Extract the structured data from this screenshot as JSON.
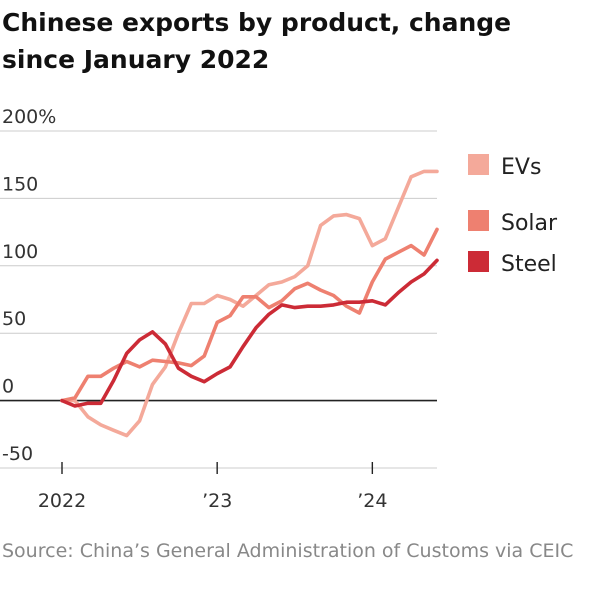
{
  "header": {
    "title": "Chinese exports by product, change since January 2022"
  },
  "footer": {
    "source": "Source: China’s General Administration of Customs via CEIC"
  },
  "chart_data": {
    "type": "line",
    "title": "Chinese exports by product, change since January 2022",
    "xlabel": "",
    "ylabel": "",
    "ylim": [
      -50,
      200
    ],
    "xlim": [
      0,
      29
    ],
    "y_ticks": [
      {
        "value": 200,
        "label": "200%"
      },
      {
        "value": 150,
        "label": "150"
      },
      {
        "value": 100,
        "label": "100"
      },
      {
        "value": 50,
        "label": "50"
      },
      {
        "value": 0,
        "label": "0"
      },
      {
        "value": -50,
        "label": "-50"
      }
    ],
    "x_ticks": [
      {
        "value": 0,
        "label": "2022"
      },
      {
        "value": 12,
        "label": "’23"
      },
      {
        "value": 24,
        "label": "’24"
      }
    ],
    "legend_position": "top-right",
    "series": [
      {
        "name": "EVs",
        "color": "#f4a99a",
        "x": [
          0,
          1,
          2,
          3,
          4,
          5,
          6,
          7,
          8,
          9,
          10,
          11,
          12,
          13,
          14,
          15,
          16,
          17,
          18,
          19,
          20,
          21,
          22,
          23,
          24,
          25,
          26,
          27,
          28,
          29
        ],
        "values": [
          0,
          0,
          -12,
          -18,
          -22,
          -26,
          -15,
          12,
          25,
          50,
          72,
          72,
          78,
          75,
          70,
          78,
          86,
          88,
          92,
          100,
          130,
          137,
          138,
          135,
          115,
          120,
          143,
          166,
          170,
          170
        ]
      },
      {
        "name": "Solar",
        "color": "#ee8070",
        "x": [
          0,
          1,
          2,
          3,
          4,
          5,
          6,
          7,
          8,
          9,
          10,
          11,
          12,
          13,
          14,
          15,
          16,
          17,
          18,
          19,
          20,
          21,
          22,
          23,
          24,
          25,
          26,
          27,
          28,
          29
        ],
        "values": [
          0,
          2,
          18,
          18,
          24,
          29,
          25,
          30,
          29,
          28,
          26,
          33,
          58,
          63,
          77,
          77,
          69,
          74,
          83,
          87,
          82,
          78,
          70,
          65,
          88,
          105,
          110,
          115,
          108,
          127
        ]
      },
      {
        "name": "Steel",
        "color": "#cc2b36",
        "x": [
          0,
          1,
          2,
          3,
          4,
          5,
          6,
          7,
          8,
          9,
          10,
          11,
          12,
          13,
          14,
          15,
          16,
          17,
          18,
          19,
          20,
          21,
          22,
          23,
          24,
          25,
          26,
          27,
          28,
          29
        ],
        "values": [
          0,
          -4,
          -2,
          -2,
          15,
          35,
          45,
          51,
          42,
          24,
          18,
          14,
          20,
          25,
          40,
          54,
          64,
          71,
          69,
          70,
          70,
          71,
          73,
          73,
          74,
          71,
          80,
          88,
          94,
          104
        ]
      }
    ]
  }
}
